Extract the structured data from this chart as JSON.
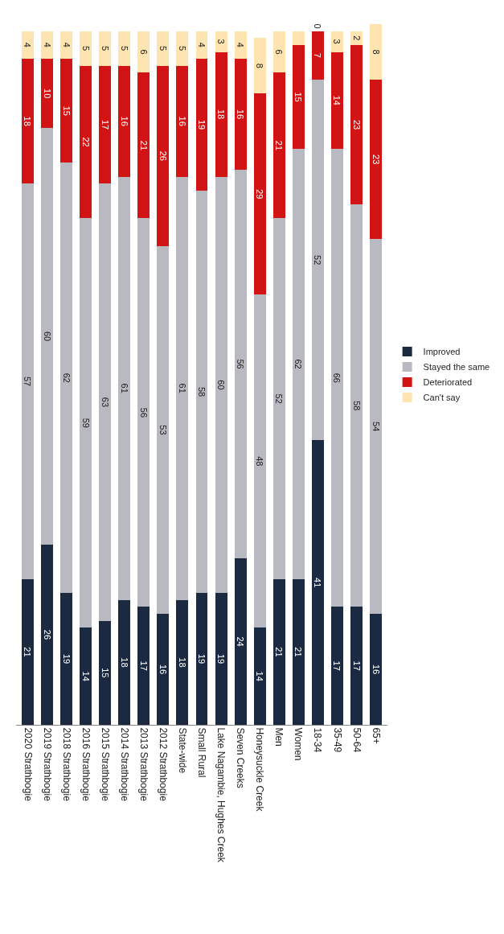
{
  "chart_data": {
    "type": "bar",
    "stacked": true,
    "categories": [
      "2020 Strathbogie",
      "2019 Strathbogie",
      "2018 Strathbogie",
      "2016 Strathbogie",
      "2015 Strathbogie",
      "2014 Strathbogie",
      "2013 Strathbogie",
      "2012 Strathbogie",
      "State-wide",
      "Small Rural",
      "Lake Nagambie, Hughes Creek",
      "Seven Creeks",
      "Honeysuckle Creek",
      "Men",
      "Women",
      "18-34",
      "35-49",
      "50-64",
      "65+"
    ],
    "series": [
      {
        "name": "Improved",
        "color": "#1b2a41",
        "values": [
          21,
          26,
          19,
          14,
          15,
          18,
          17,
          16,
          18,
          19,
          19,
          24,
          14,
          21,
          21,
          41,
          17,
          17,
          16
        ],
        "value_labels": [
          "21",
          "26",
          "19",
          "14",
          "15",
          "18",
          "17",
          "16",
          "18",
          "19",
          "19",
          "24",
          "14",
          "21",
          "21",
          "41",
          "17",
          "17",
          "16"
        ]
      },
      {
        "name": "Stayed the same",
        "color": "#b9b9c1",
        "values": [
          57,
          60,
          62,
          59,
          63,
          61,
          56,
          53,
          61,
          58,
          60,
          56,
          48,
          52,
          62,
          52,
          66,
          58,
          54
        ],
        "value_labels": [
          "57",
          "60",
          "62",
          "59",
          "63",
          "61",
          "56",
          "53",
          "61",
          "58",
          "60",
          "56",
          "48",
          "52",
          "62",
          "52",
          "66",
          "58",
          "54"
        ]
      },
      {
        "name": "Deteriorated",
        "color": "#d21414",
        "values": [
          18,
          10,
          15,
          22,
          17,
          16,
          21,
          26,
          16,
          19,
          18,
          16,
          29,
          21,
          15,
          7,
          14,
          23,
          23
        ],
        "value_labels": [
          "18",
          "10",
          "15",
          "22",
          "17",
          "16",
          "21",
          "26",
          "16",
          "19",
          "18",
          "16",
          "29",
          "21",
          "15",
          "7",
          "14",
          "23",
          "23"
        ]
      },
      {
        "name": "Can't say",
        "color": "#fde4b0",
        "values": [
          4,
          4,
          4,
          5,
          5,
          5,
          6,
          5,
          5,
          4,
          3,
          4,
          8,
          6,
          2,
          0,
          3,
          2,
          8
        ],
        "value_labels": [
          "4",
          "4",
          "4",
          "5",
          "5",
          "5",
          "6",
          "5",
          "5",
          "4",
          "3",
          "4",
          "8",
          "6",
          null,
          "0",
          "3",
          "2",
          "8"
        ]
      }
    ],
    "ylim": [
      0,
      101
    ],
    "tick_labels": "x",
    "legend": "right"
  }
}
